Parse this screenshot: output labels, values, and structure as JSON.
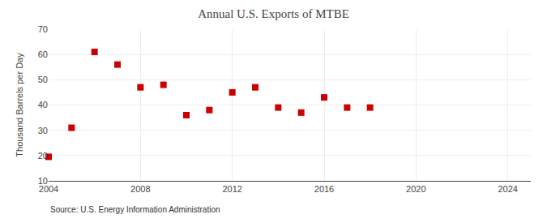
{
  "chart_data": {
    "type": "scatter",
    "title": "Annual U.S. Exports of MTBE",
    "ylabel": "Thousand Barrels per Day",
    "source": "Source: U.S. Energy Information Administration",
    "x": [
      2004,
      2005,
      2006,
      2007,
      2008,
      2009,
      2010,
      2011,
      2012,
      2013,
      2014,
      2015,
      2016,
      2017,
      2018
    ],
    "values": [
      19.5,
      31.0,
      61.0,
      56.0,
      47.0,
      48.0,
      36.0,
      38.0,
      45.0,
      47.0,
      39.0,
      37.0,
      43.0,
      39.0,
      39.0
    ],
    "color": "#cc0000",
    "marker": "square",
    "xlim": [
      2004,
      2025
    ],
    "xticks": [
      2004,
      2008,
      2012,
      2016,
      2020,
      2024
    ],
    "ylim": [
      10,
      70
    ],
    "yticks": [
      10,
      20,
      30,
      40,
      50,
      60,
      70
    ],
    "grid": true
  }
}
